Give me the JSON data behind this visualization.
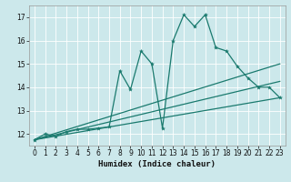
{
  "xlabel": "Humidex (Indice chaleur)",
  "bg_color": "#cce8eb",
  "grid_color": "#ffffff",
  "line_color": "#1a7a6e",
  "xlim": [
    -0.5,
    23.5
  ],
  "ylim": [
    11.5,
    17.5
  ],
  "yticks": [
    12,
    13,
    14,
    15,
    16,
    17
  ],
  "xticks": [
    0,
    1,
    2,
    3,
    4,
    5,
    6,
    7,
    8,
    9,
    10,
    11,
    12,
    13,
    14,
    15,
    16,
    17,
    18,
    19,
    20,
    21,
    22,
    23
  ],
  "series1_x": [
    0,
    1,
    2,
    3,
    4,
    5,
    6,
    7,
    8,
    9,
    10,
    11,
    12,
    13,
    14,
    15,
    16,
    17,
    18,
    19,
    20,
    21,
    22,
    23
  ],
  "series1_y": [
    11.75,
    12.0,
    11.9,
    12.1,
    12.2,
    12.2,
    12.25,
    12.3,
    14.7,
    13.9,
    15.55,
    15.0,
    12.25,
    16.0,
    17.1,
    16.6,
    17.1,
    15.7,
    15.55,
    14.9,
    14.4,
    14.0,
    14.0,
    13.55
  ],
  "trend1_x": [
    0,
    23
  ],
  "trend1_y": [
    11.75,
    13.55
  ],
  "trend2_x": [
    0,
    23
  ],
  "trend2_y": [
    11.75,
    14.25
  ],
  "trend3_x": [
    0,
    23
  ],
  "trend3_y": [
    11.75,
    15.0
  ]
}
